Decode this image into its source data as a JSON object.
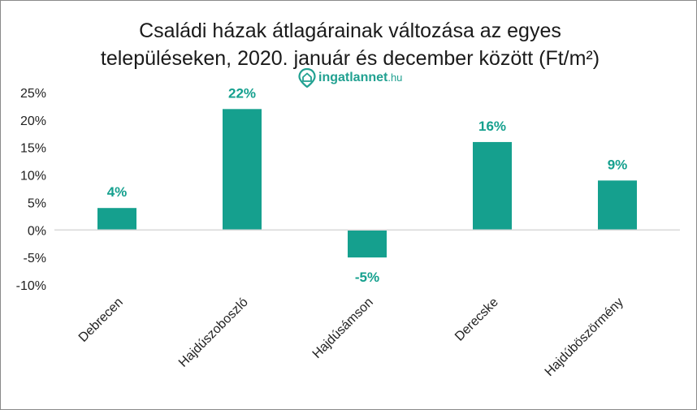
{
  "title_line1": "Családi házak átlagárainak változása az egyes",
  "title_line2": "településeken, 2020. január és december között (Ft/m²)",
  "logo": {
    "name": "ingatlannet",
    "tld": ".hu",
    "icon": "house-location-icon"
  },
  "colors": {
    "bar": "#15a08e",
    "label": "#15a08e",
    "axis": "#d9d9d9"
  },
  "chart_data": {
    "type": "bar",
    "title": "Családi házak átlagárainak változása az egyes településeken, 2020. január és december között (Ft/m²)",
    "categories": [
      "Debrecen",
      "Hajdúszoboszló",
      "Hajdúsámson",
      "Derecske",
      "Hajdúböszörmény"
    ],
    "values": [
      4,
      22,
      -5,
      16,
      9
    ],
    "data_labels": [
      "4%",
      "22%",
      "-5%",
      "16%",
      "9%"
    ],
    "ylim": [
      -10,
      25
    ],
    "yticks": [
      -10,
      -5,
      0,
      5,
      10,
      15,
      20,
      25
    ],
    "ytick_labels": [
      "-10%",
      "-5%",
      "0%",
      "5%",
      "10%",
      "15%",
      "20%",
      "25%"
    ],
    "grid": false,
    "legend": "none"
  }
}
